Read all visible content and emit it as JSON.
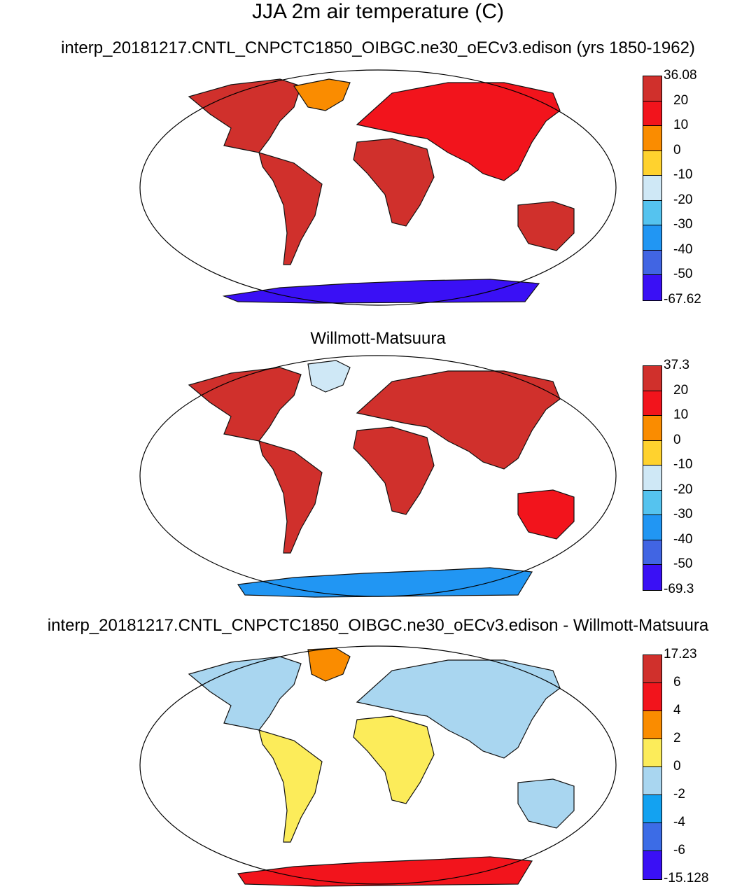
{
  "main_title": "JJA 2m air temperature (C)",
  "panels": [
    {
      "title": "interp_20181217.CNTL_CNPCTC1850_OIBGC.ne30_oECv3.edison (yrs 1850-1962)",
      "colorbar": {
        "labels": [
          "36.08",
          "20",
          "10",
          "0",
          "-10",
          "-20",
          "-30",
          "-40",
          "-50",
          "-67.62"
        ],
        "colors": [
          "#d0302c",
          "#f2141c",
          "#fa8c00",
          "#ffd22e",
          "#cfe8f6",
          "#55c3ef",
          "#2196f3",
          "#4165e3",
          "#3a10f5"
        ]
      }
    },
    {
      "title": "Willmott-Matsuura",
      "colorbar": {
        "labels": [
          "37.3",
          "20",
          "10",
          "0",
          "-10",
          "-20",
          "-30",
          "-40",
          "-50",
          "-69.3"
        ],
        "colors": [
          "#d0302c",
          "#f2141c",
          "#fa8c00",
          "#ffd22e",
          "#cfe8f6",
          "#55c3ef",
          "#2196f3",
          "#4165e3",
          "#3a10f5"
        ]
      }
    },
    {
      "title": "interp_20181217.CNTL_CNPCTC1850_OIBGC.ne30_oECv3.edison - Willmott-Matsuura",
      "colorbar": {
        "labels": [
          "17.23",
          "6",
          "4",
          "2",
          "0",
          "-2",
          "-4",
          "-6",
          "-15.128"
        ],
        "colors": [
          "#d0302c",
          "#f2141c",
          "#fa8c00",
          "#fcec5a",
          "#a9d6f0",
          "#13a2f1",
          "#3c6ce6",
          "#3a10f5"
        ]
      }
    }
  ]
}
